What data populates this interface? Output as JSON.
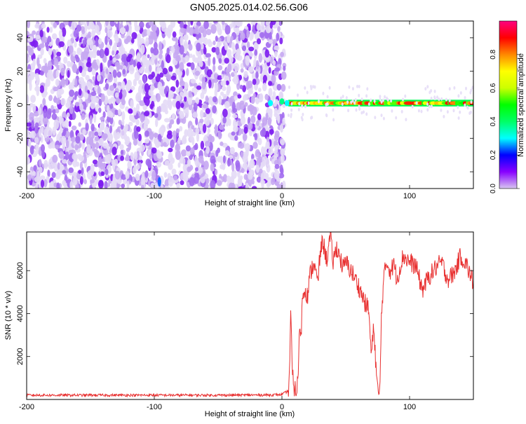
{
  "figure": {
    "title": "GN05.2025.014.02.56.G06"
  },
  "chart_data": [
    {
      "type": "heatmap",
      "title": "GN05.2025.014.02.56.G06",
      "xlabel": "Height of straight line (km)",
      "ylabel": "Frequency (Hz)",
      "xlim": [
        -200,
        150
      ],
      "ylim": [
        -50,
        50
      ],
      "xticks": [
        -200,
        -100,
        0,
        100
      ],
      "yticks": [
        -40,
        -20,
        0,
        20,
        40
      ],
      "colorbar": {
        "label": "Normalized spectral amplitude",
        "range": [
          0,
          1
        ],
        "ticks": [
          0.0,
          0.2,
          0.4,
          0.6,
          0.8
        ],
        "tick_labels": [
          "0.0",
          "0.2",
          "0.4",
          "0.6",
          "0.8"
        ],
        "colormap": [
          "#d8c8f0",
          "#8800ff",
          "#0000ff",
          "#00ffff",
          "#00ff66",
          "#00ff00",
          "#ccff00",
          "#ffff00",
          "#ff8800",
          "#ff0000",
          "#ff0080"
        ]
      },
      "regions": [
        {
          "description": "noise",
          "x_range": [
            -200,
            2
          ],
          "y_range": [
            -50,
            50
          ],
          "amplitude": [
            0.0,
            0.18
          ]
        },
        {
          "description": "carrier line",
          "x_range": [
            5,
            150
          ],
          "y_center": 1,
          "y_halfwidth": 2,
          "amplitude": [
            0.5,
            0.95
          ]
        }
      ],
      "grid": false
    },
    {
      "type": "line",
      "xlabel": "Height of straight line (km)",
      "ylabel": "SNR (10 * v/v)",
      "xlim": [
        -200,
        150
      ],
      "ylim": [
        0,
        7800
      ],
      "xticks": [
        -200,
        -100,
        0,
        100
      ],
      "yticks": [
        2000,
        4000,
        6000
      ],
      "series": [
        {
          "color": "#e83030",
          "x": [
            -200,
            -150,
            -100,
            -50,
            -10,
            0,
            5,
            6,
            7,
            8,
            9,
            10,
            11,
            12,
            13,
            14,
            15,
            16,
            18,
            20,
            22,
            25,
            28,
            30,
            32,
            35,
            38,
            40,
            43,
            45,
            48,
            50,
            55,
            60,
            65,
            68,
            70,
            72,
            74,
            75,
            76,
            77,
            78,
            80,
            82,
            85,
            88,
            90,
            95,
            100,
            105,
            110,
            115,
            120,
            125,
            130,
            135,
            140,
            145,
            150
          ],
          "y": [
            200,
            200,
            200,
            200,
            210,
            230,
            400,
            1500,
            4200,
            1300,
            700,
            500,
            400,
            600,
            1500,
            3800,
            2800,
            4800,
            5200,
            4800,
            5800,
            6400,
            5400,
            6800,
            7400,
            6500,
            7600,
            6400,
            7100,
            6700,
            6100,
            6400,
            5900,
            5300,
            4500,
            4200,
            2000,
            3400,
            1200,
            500,
            150,
            900,
            4200,
            5700,
            6400,
            6000,
            6300,
            5600,
            6700,
            6400,
            6200,
            5100,
            5700,
            6100,
            6400,
            5600,
            5900,
            6700,
            6200,
            5400
          ]
        }
      ],
      "grid": false
    }
  ]
}
